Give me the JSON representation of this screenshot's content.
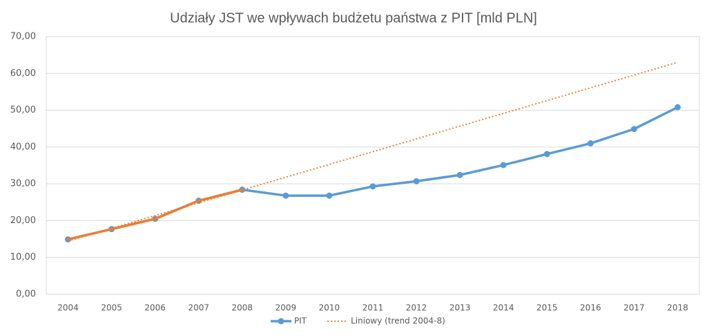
{
  "chart_data": {
    "type": "line",
    "title": "Udziały JST we wpływach budżetu państwa z PIT [mld PLN]",
    "categories": [
      "2004",
      "2005",
      "2006",
      "2007",
      "2008",
      "2009",
      "2010",
      "2011",
      "2012",
      "2013",
      "2014",
      "2015",
      "2016",
      "2017",
      "2018"
    ],
    "series": [
      {
        "name": "PIT",
        "color": "#5b9bd5",
        "markers": true,
        "dash": "solid",
        "values": [
          14.9,
          17.7,
          20.5,
          25.4,
          28.4,
          26.8,
          26.8,
          29.3,
          30.7,
          32.4,
          35.1,
          38.1,
          41.0,
          44.9,
          50.8
        ]
      },
      {
        "color": "#ed7d31",
        "markers": false,
        "dash": "solid",
        "values": [
          14.9,
          17.7,
          20.5,
          25.4,
          28.4,
          null,
          null,
          null,
          null,
          null,
          null,
          null,
          null,
          null,
          null
        ]
      },
      {
        "name": "Liniowy (trend 2004-8)",
        "color": "#ed7d31",
        "markers": false,
        "dash": "dotted",
        "values": [
          14.44,
          17.91,
          21.38,
          24.85,
          28.32,
          31.79,
          35.26,
          38.73,
          42.2,
          45.67,
          49.14,
          52.61,
          56.08,
          59.55,
          63.02
        ]
      }
    ],
    "ylim": [
      0,
      70
    ],
    "yticks": [
      {
        "value": 0,
        "label": "0,00"
      },
      {
        "value": 10,
        "label": "10,00"
      },
      {
        "value": 20,
        "label": "20,00"
      },
      {
        "value": 30,
        "label": "30,00"
      },
      {
        "value": 40,
        "label": "40,00"
      },
      {
        "value": 50,
        "label": "50,00"
      },
      {
        "value": 60,
        "label": "60,00"
      },
      {
        "value": 70,
        "label": "70,00"
      }
    ],
    "grid": true,
    "legend": "bottom"
  }
}
